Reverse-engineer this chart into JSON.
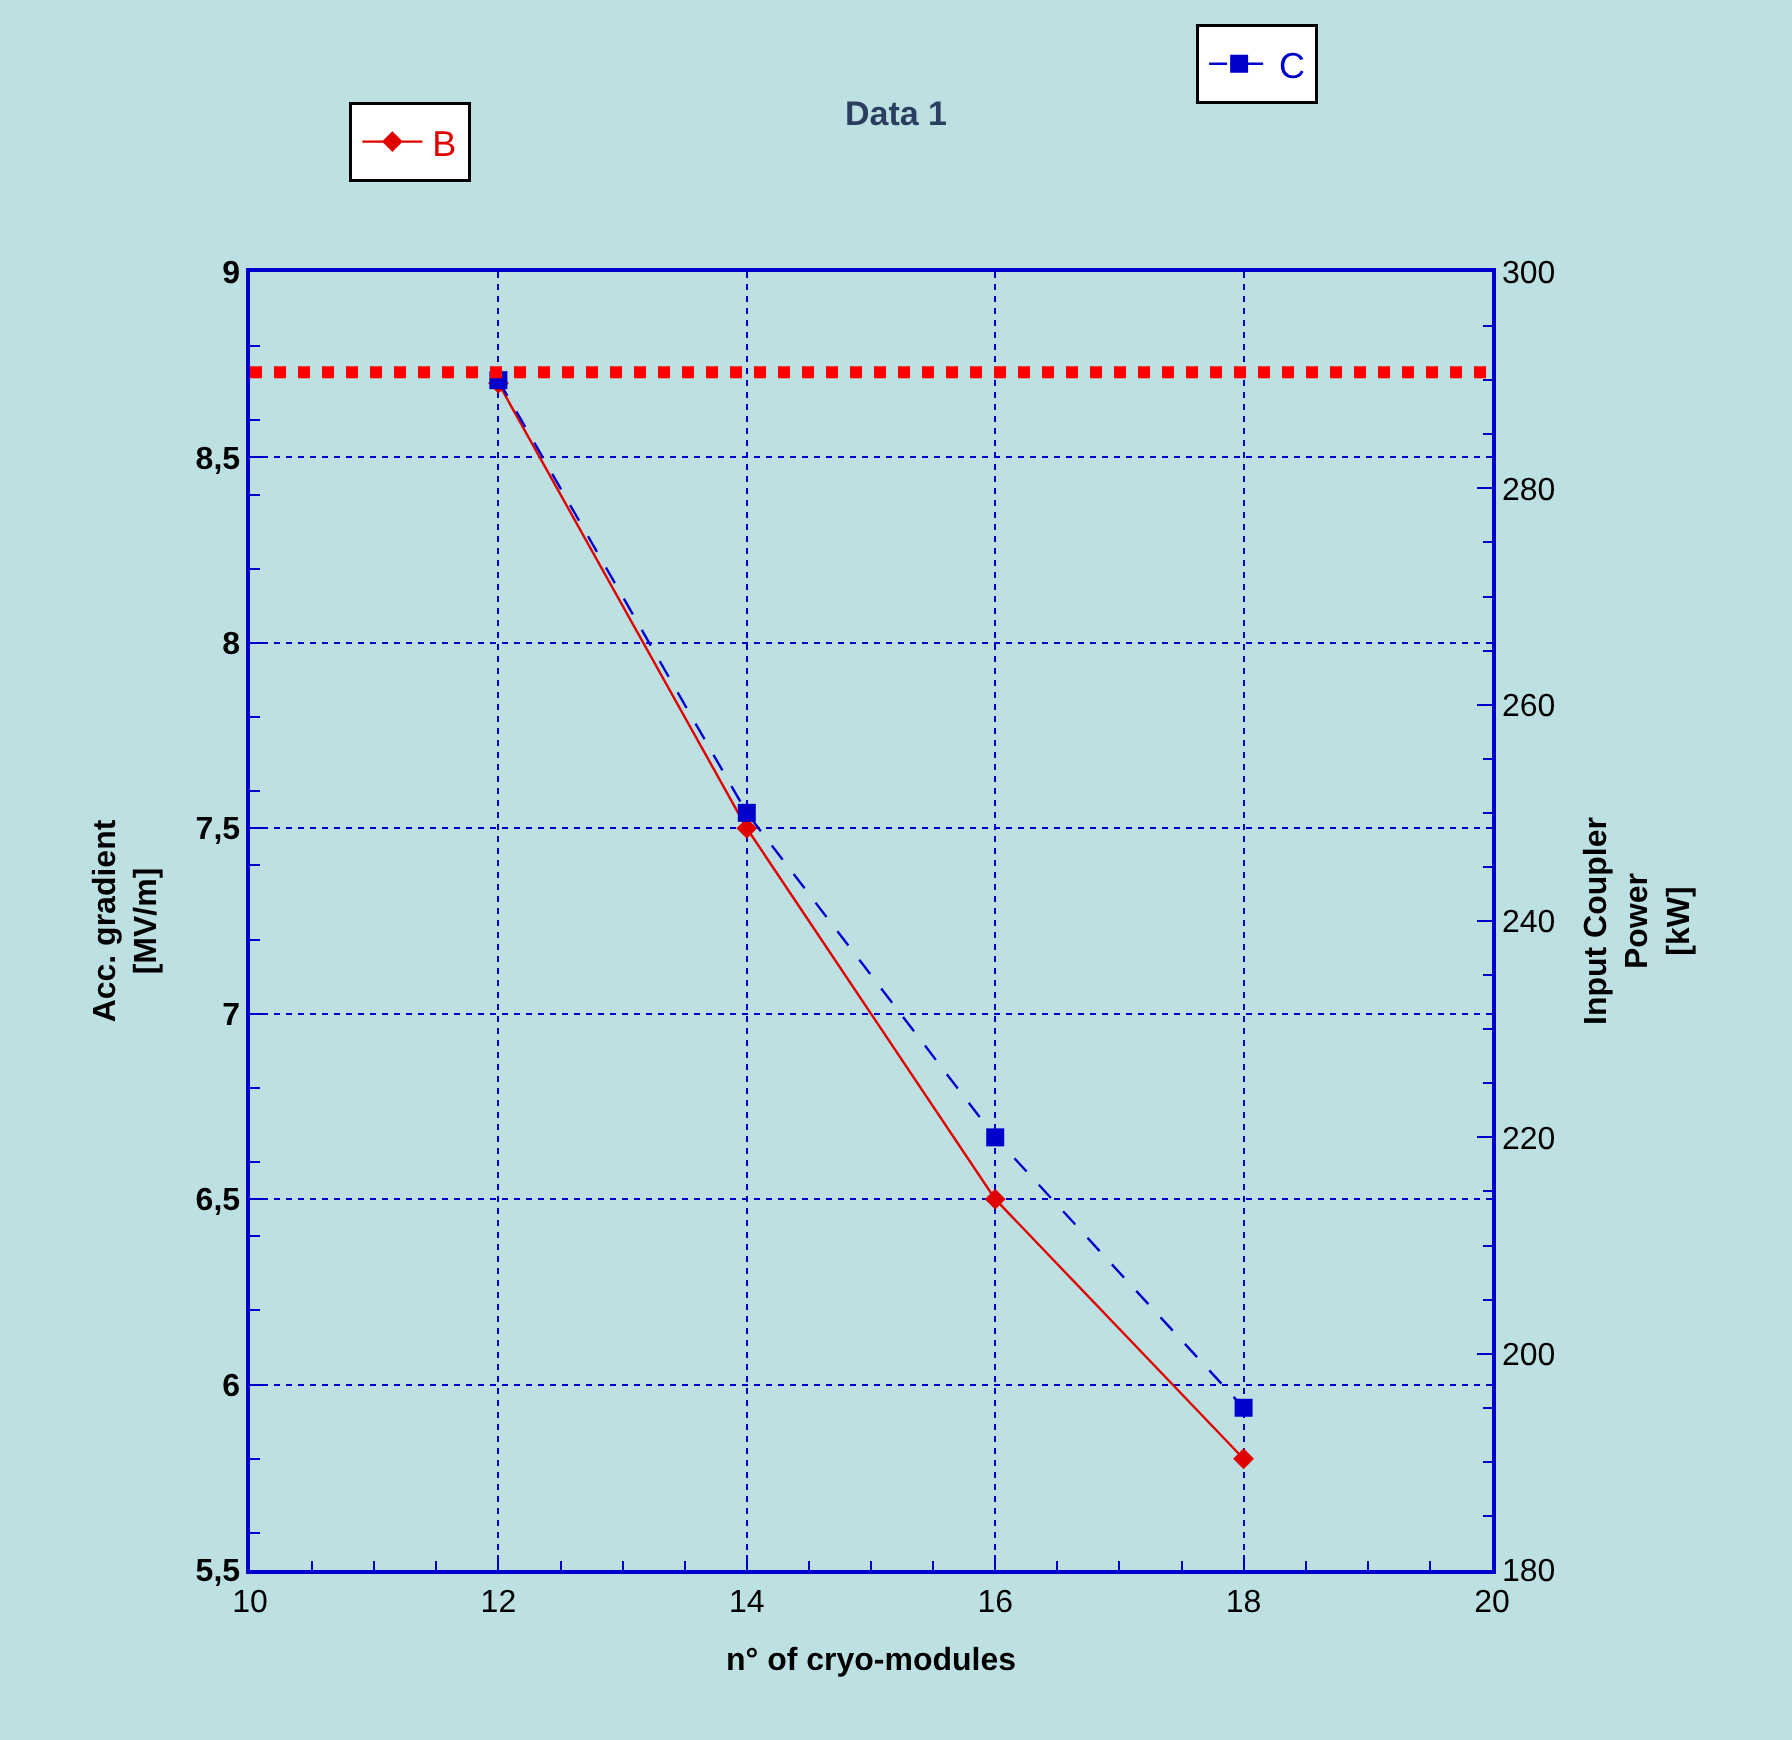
{
  "chart_data": {
    "type": "line",
    "title": "Data 1",
    "xlabel": "n° of cryo-modules",
    "ylabel": "Acc. gradient\n[MV/m]",
    "y2label": "Input Coupler\nPower\n[kW]",
    "x": [
      12,
      14,
      16,
      18
    ],
    "series": [
      {
        "name": "B",
        "color": "#e00000",
        "values": [
          8.7,
          7.5,
          6.5,
          5.8
        ],
        "marker": "diamond",
        "line_style": "solid"
      },
      {
        "name": "C",
        "color": "#0000cc",
        "values": [
          290,
          250,
          220,
          195
        ],
        "marker": "square",
        "line_style": "dashed",
        "axis": "y2"
      }
    ],
    "xlim": [
      10,
      20
    ],
    "xticks": [
      10,
      12,
      14,
      16,
      18,
      20
    ],
    "ylim": [
      5.5,
      9
    ],
    "yticks": [
      {
        "value": 5.5,
        "label": "5,5"
      },
      6,
      {
        "value": 6.5,
        "label": "6,5"
      },
      7,
      {
        "value": 7.5,
        "label": "7,5"
      },
      8,
      {
        "value": 8.5,
        "label": "8,5"
      },
      9
    ],
    "y2lim": [
      180,
      300
    ],
    "y2ticks": [
      180,
      200,
      220,
      240,
      260,
      280,
      300
    ],
    "ref_lines": [
      {
        "axis": "y",
        "value": 8.73,
        "color": "#ff0000",
        "line_style": "dotted"
      }
    ],
    "grid": true,
    "legend": "top"
  }
}
